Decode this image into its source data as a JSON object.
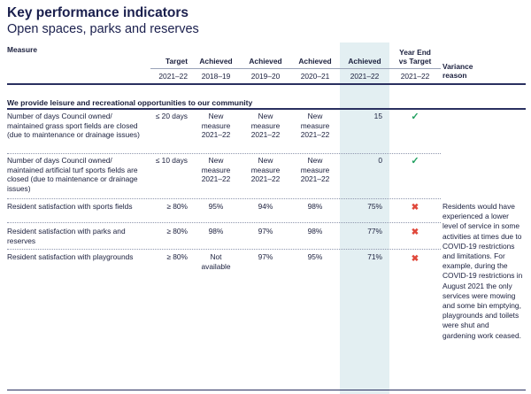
{
  "title": "Key performance indicators",
  "subtitle": "Open spaces, parks and reserves",
  "headers": {
    "measure": "Measure",
    "target": "Target",
    "achieved": "Achieved",
    "year_end_line1": "Year End",
    "year_end_line2": "vs Target",
    "variance_line1": "Variance",
    "variance_line2": "reason"
  },
  "years": {
    "target": "2021–22",
    "a1": "2018–19",
    "a2": "2019–20",
    "a3": "2020–21",
    "a4": "2021–22",
    "ye": "2021–22"
  },
  "section": "We provide leisure and recreational opportunities to our community",
  "rows": [
    {
      "measure": "Number of days Council owned/ maintained grass sport fields are closed (due to maintenance or drainage issues)",
      "target": "≤ 20 days",
      "a1": "New measure 2021–22",
      "a2": "New measure 2021–22",
      "a3": "New measure 2021–22",
      "a4": "15",
      "status": "✓"
    },
    {
      "measure": "Number of days Council owned/ maintained artificial turf sports fields are closed (due to maintenance or drainage issues)",
      "target": "≤ 10 days",
      "a1": "New measure 2021–22",
      "a2": "New measure 2021–22",
      "a3": "New measure 2021–22",
      "a4": "0",
      "status": "✓"
    },
    {
      "measure": "Resident satisfaction with sports fields",
      "target": "≥ 80%",
      "a1": "95%",
      "a2": "94%",
      "a3": "98%",
      "a4": "75%",
      "status": "✖"
    },
    {
      "measure": "Resident satisfaction with parks and reserves",
      "target": "≥ 80%",
      "a1": "98%",
      "a2": "97%",
      "a3": "98%",
      "a4": "77%",
      "status": "✖"
    },
    {
      "measure": "Resident satisfaction with playgrounds",
      "target": "≥ 80%",
      "a1": "Not available",
      "a2": "97%",
      "a3": "95%",
      "a4": "71%",
      "status": "✖"
    }
  ],
  "variance_reason": "Residents would have experienced a lower level of service in some activities at times due to COVID-19 restrictions and limitations. For example, during the COVID-19 restrictions in August 2021 the only services were mowing and some bin emptying, playgrounds and toilets were shut and gardening work ceased.",
  "colors": {
    "tick": "#21a060",
    "cross": "#e0483b",
    "highlight": "#e3eff2",
    "text": "#1a1f3d"
  }
}
